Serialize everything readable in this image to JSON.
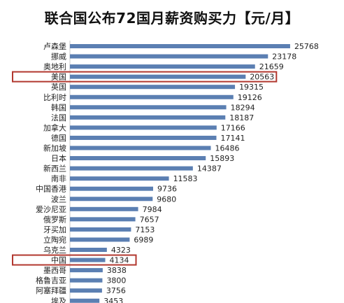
{
  "chart_data": {
    "type": "bar",
    "orientation": "horizontal",
    "title": "联合国公布72国月薪资购买力【元/月】",
    "xlabel": "",
    "ylabel": "",
    "xlim": [
      0,
      27000
    ],
    "grid": false,
    "legend": "none",
    "categories": [
      "卢森堡",
      "挪威",
      "奥地利",
      "美国",
      "英国",
      "比利时",
      "韩国",
      "法国",
      "加拿大",
      "德国",
      "新加坡",
      "日本",
      "新西兰",
      "南非",
      "中国香港",
      "波兰",
      "爱沙尼亚",
      "俄罗斯",
      "牙买加",
      "立陶宛",
      "乌克兰",
      "中国",
      "墨西哥",
      "格鲁吉亚",
      "阿塞拜疆",
      "埃及"
    ],
    "values": [
      25768,
      23178,
      21659,
      20563,
      19315,
      19126,
      18294,
      18187,
      17166,
      17141,
      16486,
      15893,
      14387,
      11583,
      9736,
      9680,
      7984,
      7657,
      7153,
      6989,
      4323,
      4134,
      3838,
      3800,
      3756,
      3453
    ],
    "value_labels": [
      "25768",
      "23178",
      "21659",
      "20563",
      "19315",
      "19126",
      "18294",
      "18187",
      "17166",
      "17141",
      "16486",
      "15893",
      "14387",
      "11583",
      "9736",
      "9680",
      "7984",
      "7657",
      "7153",
      "6989",
      "4323",
      "4134",
      "3838",
      "3800",
      "3756",
      "3453"
    ],
    "highlighted": [
      "美国",
      "中国"
    ],
    "bar_color": "#5b7fb2",
    "highlight_color": "#b2382f"
  }
}
